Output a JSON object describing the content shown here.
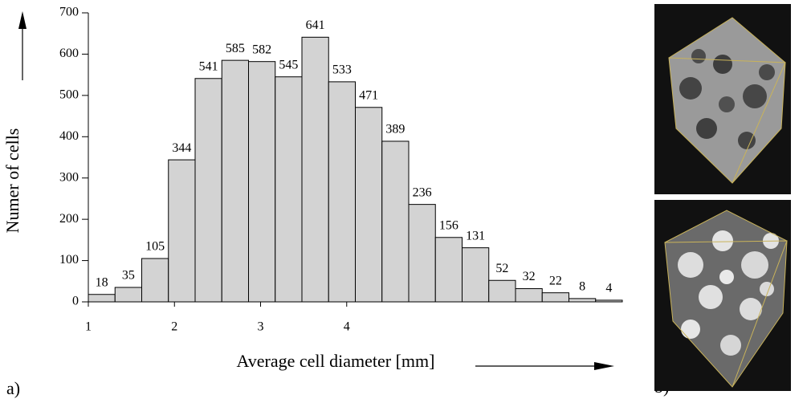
{
  "chart_data": {
    "type": "histogram",
    "x_label": "Average cell diameter [mm]",
    "y_label": "Numer of cells",
    "panel_labels": [
      "a)",
      "b)"
    ],
    "bins": [
      1,
      1.31,
      1.62,
      1.93,
      2.24,
      2.55,
      2.86,
      3.17,
      3.48,
      3.79,
      4.1,
      4.41,
      4.72,
      5.03,
      5.34,
      5.65,
      5.96,
      6.27,
      6.58,
      6.89,
      7.2
    ],
    "values": [
      18,
      35,
      105,
      344,
      541,
      585,
      582,
      545,
      641,
      533,
      471,
      389,
      236,
      156,
      131,
      52,
      32,
      22,
      8,
      4
    ],
    "color": "#d3d3d3",
    "xlim": [
      1,
      7.2
    ],
    "xticks": [
      1,
      2,
      3,
      4
    ],
    "ylim": [
      0,
      700
    ],
    "yticks": [
      0,
      100,
      200,
      300,
      400,
      500,
      600,
      700
    ],
    "grid": false
  }
}
